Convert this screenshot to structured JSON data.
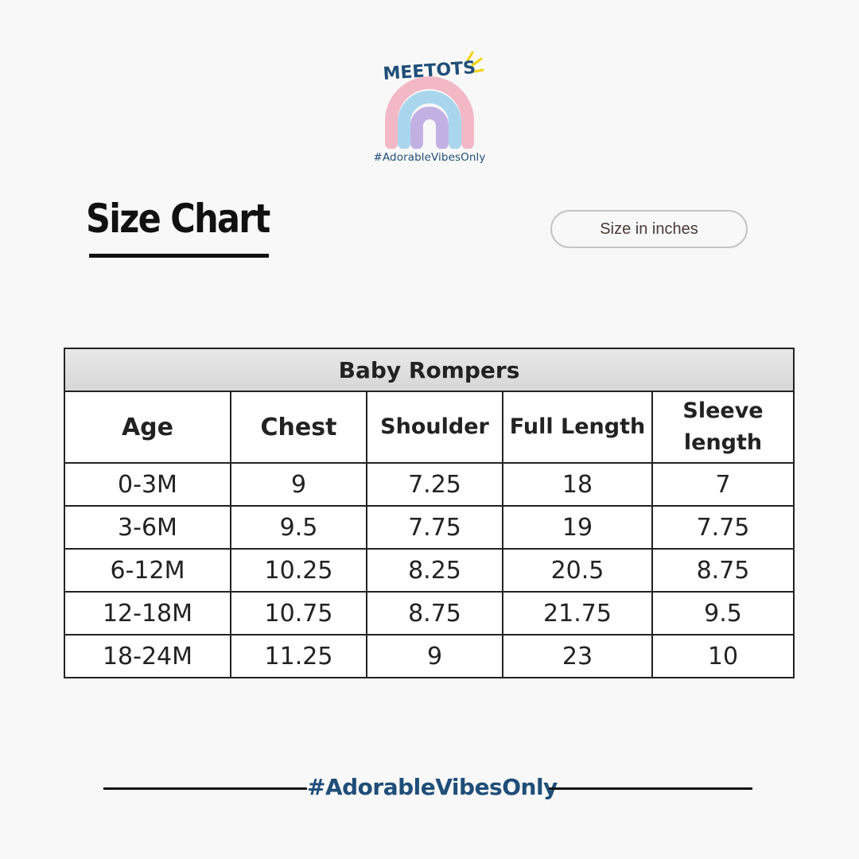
{
  "brand": {
    "name": "MEETOTS",
    "tagline": "#AdorableVibesOnly",
    "colors": {
      "name": "#1f4e79",
      "rainbow_outer": "#f2b8c6",
      "rainbow_middle": "#a9d6ec",
      "rainbow_inner": "#c3b0e2",
      "sparkle": "#f5d20a"
    }
  },
  "header": {
    "title": "Size Chart",
    "unit_label": "Size in inches"
  },
  "table": {
    "caption": "Baby Rompers",
    "columns": [
      "Age",
      "Chest",
      "Shoulder",
      "Full Length",
      "Sleeve length"
    ],
    "rows": [
      [
        "0-3M",
        "9",
        "7.25",
        "18",
        "7"
      ],
      [
        "3-6M",
        "9.5",
        "7.75",
        "19",
        "7.75"
      ],
      [
        "6-12M",
        "10.25",
        "8.25",
        "20.5",
        "8.75"
      ],
      [
        "12-18M",
        "10.75",
        "8.75",
        "21.75",
        "9.5"
      ],
      [
        "18-24M",
        "11.25",
        "9",
        "23",
        "10"
      ]
    ]
  },
  "footer": {
    "tagline": "#AdorableVibesOnly"
  }
}
